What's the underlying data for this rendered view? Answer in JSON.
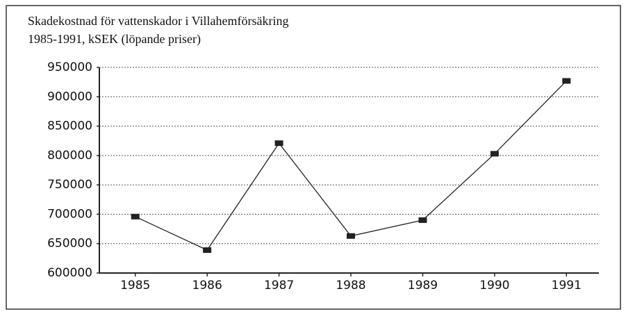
{
  "chart_data": {
    "type": "line",
    "title": "Skadekostnad för vattenskador i Villahemförsäkring",
    "subtitle": "1985-1991, kSEK (löpande priser)",
    "categories": [
      "1985",
      "1986",
      "1987",
      "1988",
      "1989",
      "1990",
      "1991"
    ],
    "values": [
      696000,
      639000,
      821000,
      663000,
      690000,
      803000,
      927000
    ],
    "color": "#222222",
    "ylim": [
      600000,
      950000
    ],
    "yticks": [
      600000,
      650000,
      700000,
      750000,
      800000,
      850000,
      900000,
      950000
    ],
    "grid": true
  }
}
